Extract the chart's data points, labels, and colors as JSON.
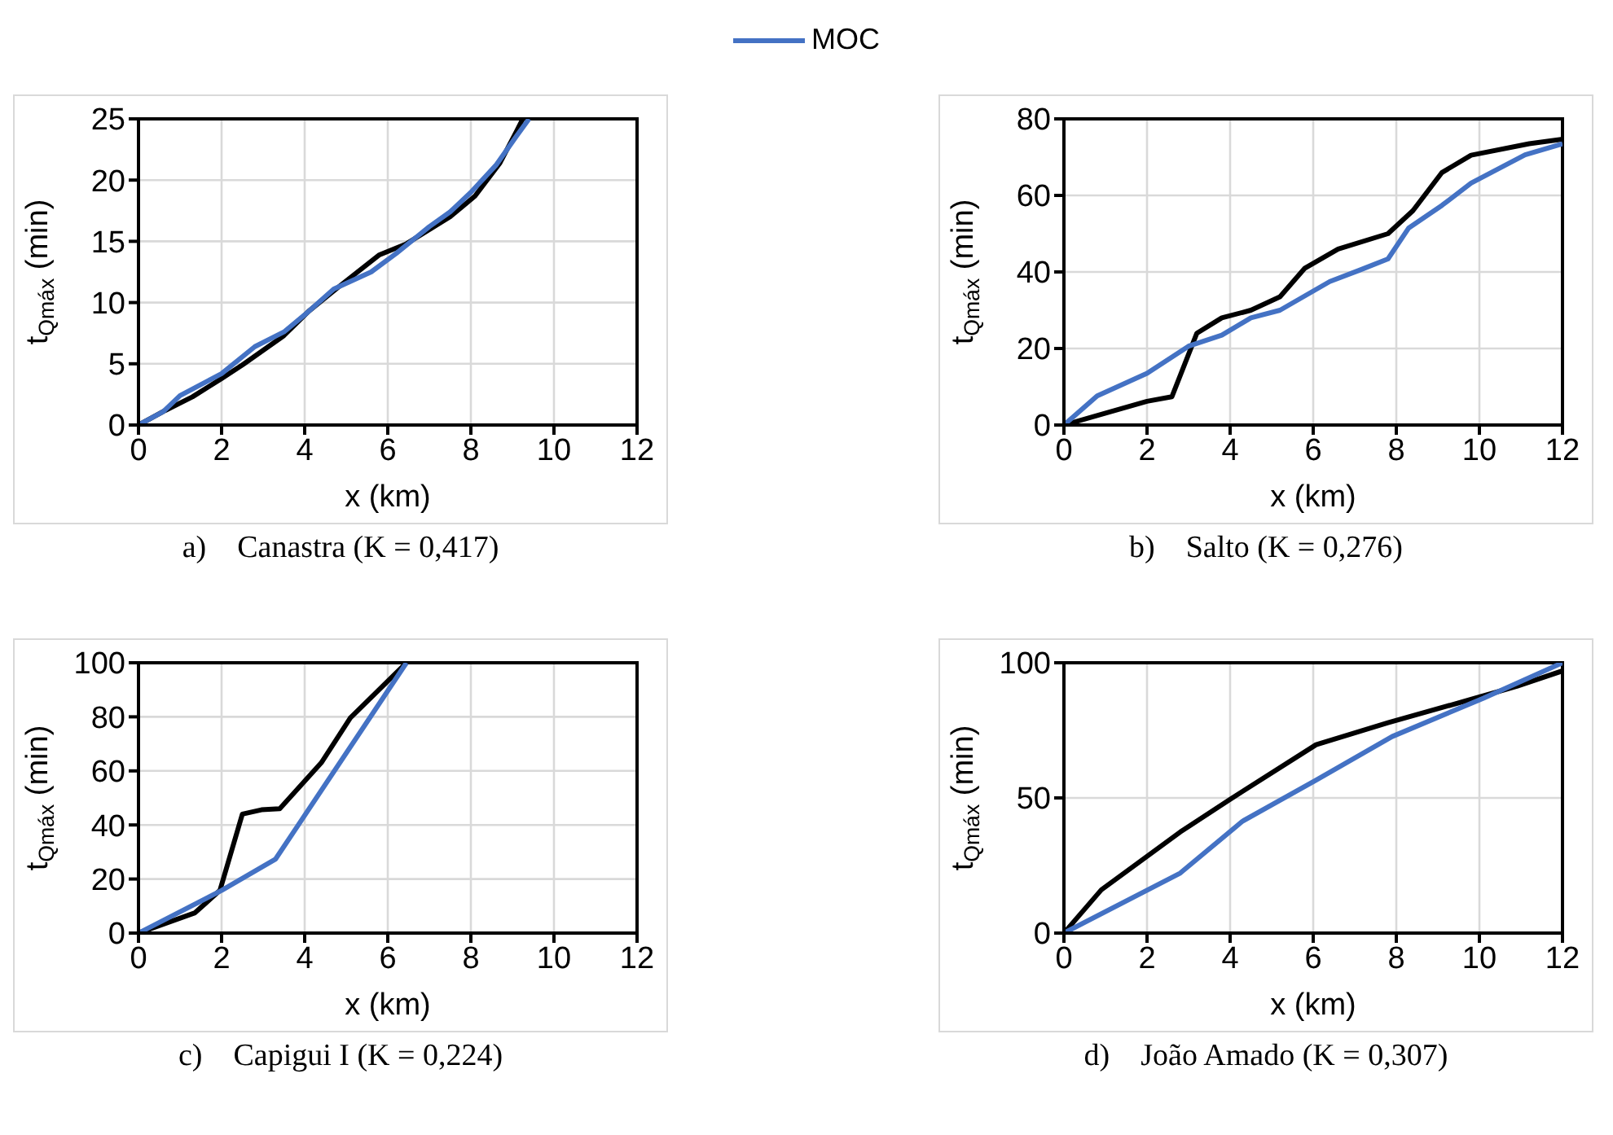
{
  "chart_data": [
    {
      "type": "line",
      "title": "a)    Canastra (K = 0,417)",
      "xlabel": "x (km)",
      "ylabel": "t$_{Qmáx}$ (min)",
      "xlim": [
        0,
        12
      ],
      "xticks": [
        0,
        2,
        4,
        6,
        8,
        10,
        12
      ],
      "ylim": [
        0,
        25
      ],
      "yticks": [
        0,
        5,
        10,
        15,
        20,
        25
      ],
      "grid": true,
      "legend": "top",
      "series": [
        {
          "color": "#000000",
          "x": [
            0,
            0.65,
            1.3,
            2,
            2.5,
            3,
            3.5,
            4.1,
            4.9,
            5.8,
            6.45,
            7.5,
            8.1,
            8.7,
            9.1,
            9.25
          ],
          "values": [
            0,
            1.2,
            2.3,
            3.8,
            4.9,
            6.1,
            7.3,
            9.3,
            11.5,
            13.9,
            14.8,
            17,
            18.7,
            21.4,
            24,
            25
          ]
        },
        {
          "name": "MOC",
          "color": "#4472c4",
          "x": [
            0,
            0.6,
            1,
            2,
            2.8,
            3.5,
            4,
            4.7,
            5.6,
            6.2,
            7,
            7.5,
            8,
            8.6,
            9.1,
            9.4
          ],
          "values": [
            0,
            1.1,
            2.4,
            4.2,
            6.4,
            7.6,
            9,
            11.1,
            12.5,
            14,
            16.2,
            17.4,
            19,
            21.2,
            23.6,
            25
          ]
        }
      ]
    },
    {
      "type": "line",
      "title": "b)    Salto (K = 0,276)",
      "xlabel": "x (km)",
      "ylabel": "t$_{Qmáx}$ (min)",
      "xlim": [
        0,
        12
      ],
      "xticks": [
        0,
        2,
        4,
        6,
        8,
        10,
        12
      ],
      "ylim": [
        0,
        80
      ],
      "yticks": [
        0,
        20,
        40,
        60,
        80
      ],
      "grid": true,
      "series": [
        {
          "color": "#000000",
          "x": [
            0,
            2,
            2.6,
            3.2,
            3.8,
            4.5,
            5.2,
            5.8,
            6.6,
            7.8,
            8.4,
            9.1,
            9.8,
            11.2,
            12
          ],
          "values": [
            0,
            6.2,
            7.4,
            24,
            28,
            30,
            33.5,
            41,
            46,
            50,
            56,
            66,
            70.5,
            73.5,
            74.7
          ]
        },
        {
          "color": "#4472c4",
          "x": [
            0,
            0.8,
            2,
            3,
            3.8,
            4.5,
            5.2,
            6.4,
            7.1,
            7.8,
            8.3,
            9.1,
            9.8,
            11.1,
            12
          ],
          "values": [
            0,
            7.6,
            13.5,
            20.6,
            23.5,
            28,
            30,
            37.5,
            40.4,
            43.4,
            51.5,
            57.4,
            63.2,
            70.6,
            73.5
          ]
        }
      ]
    },
    {
      "type": "line",
      "title": "c)    Capigui I (K = 0,224)",
      "xlabel": "x (km)",
      "ylabel": "t$_{Qmáx}$ (min)",
      "xlim": [
        0,
        12
      ],
      "xticks": [
        0,
        2,
        4,
        6,
        8,
        10,
        12
      ],
      "ylim": [
        0,
        100
      ],
      "yticks": [
        0,
        20,
        40,
        60,
        80,
        100
      ],
      "grid": true,
      "series": [
        {
          "color": "#000000",
          "x": [
            0,
            1.36,
            1.96,
            2.5,
            2.96,
            3.4,
            4.4,
            5.1,
            6.45
          ],
          "values": [
            0,
            7.5,
            15.8,
            44,
            45.6,
            46,
            63,
            79.6,
            100
          ]
        },
        {
          "color": "#4472c4",
          "x": [
            0,
            2,
            3.3,
            6.45
          ],
          "values": [
            0,
            15.8,
            27.4,
            100
          ]
        }
      ]
    },
    {
      "type": "line",
      "title": "d)    João Amado (K = 0,307)",
      "xlabel": "x (km)",
      "ylabel": "t$_{Qmáx}$ (min)",
      "xlim": [
        0,
        12
      ],
      "xticks": [
        0,
        2,
        4,
        6,
        8,
        10,
        12
      ],
      "ylim": [
        0,
        100
      ],
      "yticks": [
        0,
        50,
        100
      ],
      "grid": true,
      "series": [
        {
          "color": "#000000",
          "x": [
            0,
            0.9,
            2.8,
            4,
            6.07,
            7.8,
            9.9,
            10.9,
            12
          ],
          "values": [
            0,
            16,
            37.4,
            49.5,
            69.7,
            77.8,
            86.9,
            91.3,
            97
          ]
        },
        {
          "color": "#4472c4",
          "x": [
            0,
            2.8,
            4.3,
            6.07,
            7.9,
            10.1,
            12
          ],
          "values": [
            0,
            22.2,
            41.4,
            56.6,
            72.7,
            86.9,
            100
          ]
        }
      ]
    }
  ]
}
